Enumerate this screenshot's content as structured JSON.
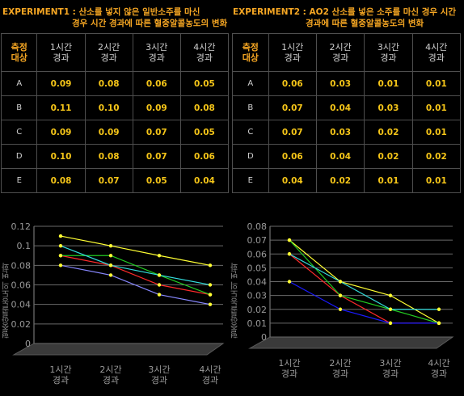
{
  "experiment1": {
    "title_line1": "EXPERIMENT1 : 산소를 넣지 않은 일반소주를 마신",
    "title_line2": "경우 시간 경과에 따른 혈중알콜농도의 변화",
    "header": [
      "측정\n대상",
      "1시간\n경과",
      "2시간\n경과",
      "3시간\n경과",
      "4시간\n경과"
    ],
    "rows": [
      [
        "A",
        "0.09",
        "0.08",
        "0.06",
        "0.05"
      ],
      [
        "B",
        "0.11",
        "0.10",
        "0.09",
        "0.08"
      ],
      [
        "C",
        "0.09",
        "0.09",
        "0.07",
        "0.05"
      ],
      [
        "D",
        "0.10",
        "0.08",
        "0.07",
        "0.06"
      ],
      [
        "E",
        "0.08",
        "0.07",
        "0.05",
        "0.04"
      ]
    ]
  },
  "experiment2": {
    "title_line1": "EXPERIMENT2 : AO2 산소를 넣은 소주를 마신 경우 시간",
    "title_line2": "경과에 따른 혈중알콜농도의 변화",
    "header": [
      "측정\n대상",
      "1시간\n경과",
      "2시간\n경과",
      "3시간\n경과",
      "4시간\n경과"
    ],
    "rows": [
      [
        "A",
        "0.06",
        "0.03",
        "0.01",
        "0.01"
      ],
      [
        "B",
        "0.07",
        "0.04",
        "0.03",
        "0.01"
      ],
      [
        "C",
        "0.07",
        "0.03",
        "0.02",
        "0.01"
      ],
      [
        "D",
        "0.06",
        "0.04",
        "0.02",
        "0.02"
      ],
      [
        "E",
        "0.04",
        "0.02",
        "0.01",
        "0.01"
      ]
    ]
  },
  "colors": {
    "title": "#f5a623",
    "value": "#f5c518",
    "line": "#9a9a9a",
    "floor": "#3a3a3a"
  },
  "chart_data": [
    {
      "type": "line",
      "categories": [
        "1시간\n경과",
        "2시간\n경과",
        "3시간\n경과",
        "4시간\n경과"
      ],
      "ylabel": "혈중알콜농도의 변화",
      "ylim": [
        0,
        0.12
      ],
      "yticks": [
        "0",
        "0.02",
        "0.04",
        "0.06",
        "0.08",
        "0.1",
        "0.12"
      ],
      "grid": true,
      "series": [
        {
          "values": [
            0.09,
            0.08,
            0.06,
            0.05
          ],
          "color": "#ff2a2a"
        },
        {
          "values": [
            0.11,
            0.1,
            0.09,
            0.08
          ],
          "color": "#ffff33"
        },
        {
          "values": [
            0.09,
            0.09,
            0.07,
            0.05
          ],
          "color": "#22cc22"
        },
        {
          "values": [
            0.1,
            0.08,
            0.07,
            0.06
          ],
          "color": "#33dddd"
        },
        {
          "values": [
            0.08,
            0.07,
            0.05,
            0.04
          ],
          "color": "#8888ff"
        }
      ]
    },
    {
      "type": "line",
      "categories": [
        "1시간\n경과",
        "2시간\n경과",
        "3시간\n경과",
        "4시간\n경과"
      ],
      "ylabel": "혈중알콜농도의 변화",
      "ylim": [
        0,
        0.08
      ],
      "yticks": [
        "0",
        "0.01",
        "0.02",
        "0.03",
        "0.04",
        "0.05",
        "0.06",
        "0.07",
        "0.08"
      ],
      "grid": true,
      "series": [
        {
          "values": [
            0.06,
            0.03,
            0.01,
            0.01
          ],
          "color": "#ff2a2a"
        },
        {
          "values": [
            0.07,
            0.04,
            0.03,
            0.01
          ],
          "color": "#ffff33"
        },
        {
          "values": [
            0.07,
            0.03,
            0.02,
            0.01
          ],
          "color": "#22cc22"
        },
        {
          "values": [
            0.06,
            0.04,
            0.02,
            0.02
          ],
          "color": "#33dddd"
        },
        {
          "values": [
            0.04,
            0.02,
            0.01,
            0.01
          ],
          "color": "#1a1aff"
        }
      ]
    }
  ]
}
